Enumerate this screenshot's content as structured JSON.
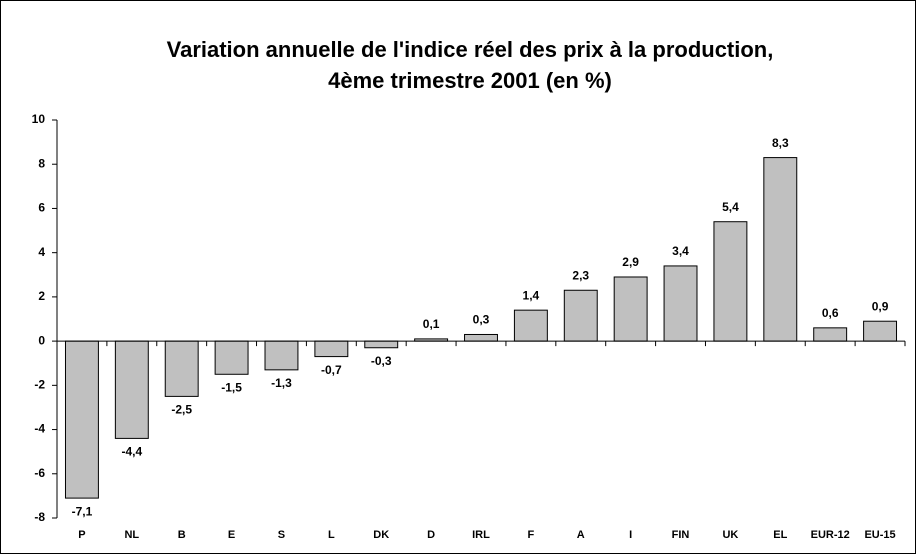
{
  "chart_data": {
    "type": "bar",
    "title": [
      "Variation annuelle de l'indice réel des prix à la production,",
      "4ème trimestre 2001 (en %)"
    ],
    "categories": [
      "P",
      "NL",
      "B",
      "E",
      "S",
      "L",
      "DK",
      "D",
      "IRL",
      "F",
      "A",
      "I",
      "FIN",
      "UK",
      "EL",
      "EUR-12",
      "EU-15"
    ],
    "values": [
      -7.1,
      -4.4,
      -2.5,
      -1.5,
      -1.3,
      -0.7,
      -0.3,
      0.1,
      0.3,
      1.4,
      2.3,
      2.9,
      3.4,
      5.4,
      8.3,
      0.6,
      0.9
    ],
    "value_labels": [
      "-7,1",
      "-4,4",
      "-2,5",
      "-1,5",
      "-1,3",
      "-0,7",
      "-0,3",
      "0,1",
      "0,3",
      "1,4",
      "2,3",
      "2,9",
      "3,4",
      "5,4",
      "8,3",
      "0,6",
      "0,9"
    ],
    "color": "#c0c0c0",
    "ylim": [
      -8,
      10
    ],
    "yticks": [
      -8,
      -6,
      -4,
      -2,
      0,
      2,
      4,
      6,
      8,
      10
    ],
    "grid": false
  }
}
